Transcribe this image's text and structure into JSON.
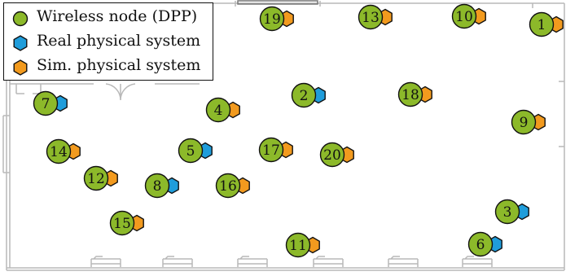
{
  "colors": {
    "node_fill": "#8cb92a",
    "real_fill": "#1f9ddb",
    "sim_fill": "#f29a1e",
    "outline": "#111111",
    "floorplan": "#b9b9b9"
  },
  "legend": {
    "items": [
      {
        "label": "Wireless node (DPP)",
        "shape": "circle",
        "color": "#8cb92a"
      },
      {
        "label": "Real physical system",
        "shape": "hexagon",
        "color": "#1f9ddb"
      },
      {
        "label": "Sim. physical system",
        "shape": "hexagon",
        "color": "#f29a1e"
      }
    ]
  },
  "nodes": [
    {
      "id": "1",
      "system": "sim"
    },
    {
      "id": "2",
      "system": "real"
    },
    {
      "id": "3",
      "system": "real"
    },
    {
      "id": "4",
      "system": "sim"
    },
    {
      "id": "5",
      "system": "real"
    },
    {
      "id": "6",
      "system": "real"
    },
    {
      "id": "7",
      "system": "real"
    },
    {
      "id": "8",
      "system": "real"
    },
    {
      "id": "9",
      "system": "sim"
    },
    {
      "id": "10",
      "system": "sim"
    },
    {
      "id": "11",
      "system": "sim"
    },
    {
      "id": "12",
      "system": "sim"
    },
    {
      "id": "13",
      "system": "sim"
    },
    {
      "id": "14",
      "system": "sim"
    },
    {
      "id": "15",
      "system": "sim"
    },
    {
      "id": "16",
      "system": "sim"
    },
    {
      "id": "17",
      "system": "sim"
    },
    {
      "id": "18",
      "system": "sim"
    },
    {
      "id": "19",
      "system": "sim"
    },
    {
      "id": "20",
      "system": "sim"
    }
  ]
}
